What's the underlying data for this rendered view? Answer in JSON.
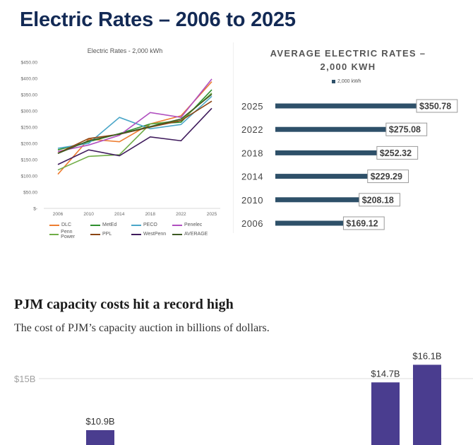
{
  "header": {
    "title": "Electric Rates – 2006 to 2025"
  },
  "chart_data": [
    {
      "type": "line",
      "title": "Electric Rates - 2,000 kWh",
      "x": [
        "2006",
        "2010",
        "2014",
        "2018",
        "2022",
        "2025"
      ],
      "yticks": [
        "$450.00",
        "$400.00",
        "$350.00",
        "$300.00",
        "$250.00",
        "$200.00",
        "$150.00",
        "$100.00",
        "$50.00",
        "$-"
      ],
      "ylim": [
        0,
        450
      ],
      "grid": false,
      "legend_position": "bottom",
      "series": [
        {
          "name": "DLC",
          "color": "#ed7d31",
          "values": [
            105,
            213,
            205,
            260,
            285,
            390
          ]
        },
        {
          "name": "MetEd",
          "color": "#2f8f2f",
          "values": [
            180,
            205,
            230,
            260,
            265,
            365
          ]
        },
        {
          "name": "PECO",
          "color": "#4aa6c8",
          "values": [
            185,
            200,
            280,
            245,
            258,
            345
          ]
        },
        {
          "name": "Penelec",
          "color": "#b04fc0",
          "values": [
            175,
            195,
            225,
            295,
            280,
            398
          ]
        },
        {
          "name": "Penn Power",
          "color": "#70ad47",
          "values": [
            118,
            160,
            165,
            260,
            270,
            355
          ]
        },
        {
          "name": "PPL",
          "color": "#8b4513",
          "values": [
            170,
            215,
            228,
            250,
            270,
            330
          ]
        },
        {
          "name": "WestPenn",
          "color": "#3f1b5c",
          "values": [
            135,
            180,
            162,
            220,
            208,
            308
          ]
        },
        {
          "name": "AVERAGE",
          "color": "#3d5a23",
          "values": [
            169,
            208,
            229,
            252,
            275,
            351
          ]
        }
      ]
    },
    {
      "type": "bar",
      "orientation": "horizontal",
      "title": "AVERAGE ELECTRIC RATES – 2,000 KWH",
      "legend": "2,000 kWh",
      "color": "#2e5069",
      "categories": [
        "2025",
        "2022",
        "2018",
        "2014",
        "2010",
        "2006"
      ],
      "values": [
        350.78,
        275.08,
        252.32,
        229.29,
        208.18,
        169.12
      ],
      "labels": [
        "$350.78",
        "$275.08",
        "$252.32",
        "$229.29",
        "$208.18",
        "$169.12"
      ]
    },
    {
      "type": "bar",
      "title": "PJM capacity costs hit a record high",
      "subtitle": "The cost of PJM’s capacity auction in billions of dollars.",
      "gridline_label": "$15B",
      "gridline_value": 15,
      "color": "#4a3d8f",
      "values": [
        10.9,
        14.7,
        16.1
      ],
      "labels": [
        "$10.9B",
        "$14.7B",
        "$16.1B"
      ]
    }
  ]
}
